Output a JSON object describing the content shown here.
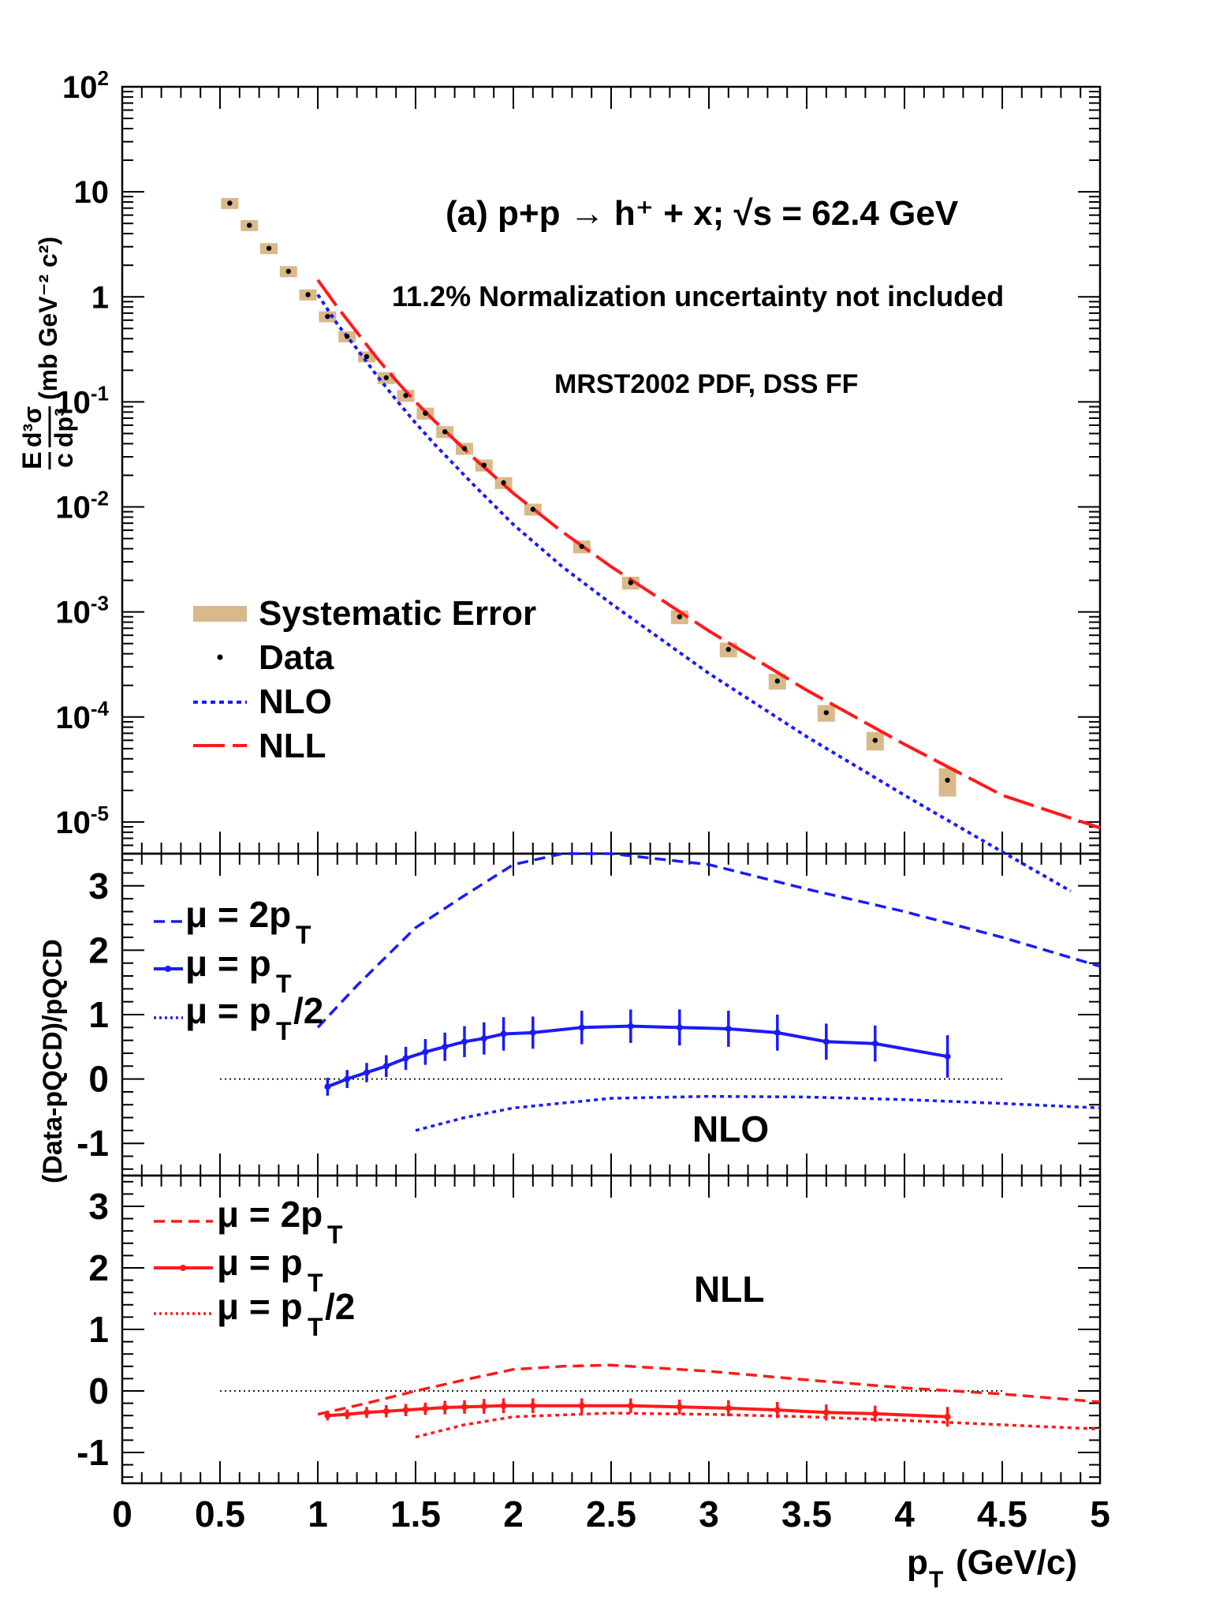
{
  "chart_data": [
    {
      "type": "scatter",
      "panel": "top",
      "title": "(a) p+p → h⁺ + x; √s = 62.4 GeV",
      "annotations": [
        "11.2% Normalization uncertainty not included",
        "MRST2002 PDF, DSS FF"
      ],
      "ylabel_parts": {
        "e": "E",
        "c": "c",
        "d3sigma": "d³σ",
        "dp3": "dp³",
        "units": "(mb GeV⁻² c²)"
      },
      "xlim": [
        0,
        5
      ],
      "ylim": [
        5e-06,
        100
      ],
      "yscale": "log",
      "ytick_labels": [
        {
          "value": 100,
          "base": "10",
          "exp": "2"
        },
        {
          "value": 10,
          "base": "10",
          "exp": ""
        },
        {
          "value": 1,
          "base": "1",
          "exp": ""
        },
        {
          "value": 0.1,
          "base": "10",
          "exp": "-1"
        },
        {
          "value": 0.01,
          "base": "10",
          "exp": "-2"
        },
        {
          "value": 0.001,
          "base": "10",
          "exp": "-3"
        },
        {
          "value": 0.0001,
          "base": "10",
          "exp": "-4"
        },
        {
          "value": 1e-05,
          "base": "10",
          "exp": "-5"
        }
      ],
      "legend": {
        "placement": "lower-left",
        "entries": [
          {
            "label": "Systematic Error",
            "style": "box",
            "color": "#d9b98a"
          },
          {
            "label": "Data",
            "style": "dot",
            "color": "#000000"
          },
          {
            "label": "NLO",
            "style": "dotted",
            "color": "#1a1aff"
          },
          {
            "label": "NLL",
            "style": "dashed",
            "color": "#ff1a1a"
          }
        ]
      },
      "data": {
        "x": [
          0.55,
          0.65,
          0.75,
          0.85,
          0.95,
          1.05,
          1.15,
          1.25,
          1.35,
          1.45,
          1.55,
          1.65,
          1.75,
          1.85,
          1.95,
          2.1,
          2.35,
          2.6,
          2.85,
          3.1,
          3.35,
          3.6,
          3.85,
          4.22
        ],
        "y": [
          7.8,
          4.8,
          2.9,
          1.75,
          1.05,
          0.65,
          0.42,
          0.27,
          0.17,
          0.115,
          0.078,
          0.052,
          0.036,
          0.025,
          0.017,
          0.0095,
          0.0042,
          0.0019,
          0.0009,
          0.00044,
          0.00022,
          0.00011,
          6e-05,
          2.5e-05
        ],
        "syst_rel": [
          0.12,
          0.12,
          0.12,
          0.12,
          0.12,
          0.12,
          0.12,
          0.12,
          0.13,
          0.13,
          0.13,
          0.13,
          0.13,
          0.13,
          0.13,
          0.13,
          0.14,
          0.14,
          0.15,
          0.16,
          0.17,
          0.18,
          0.2,
          0.3
        ],
        "color": "#d9b98a"
      },
      "series": [
        {
          "name": "NLO",
          "x": [
            1.0,
            1.1,
            1.2,
            1.3,
            1.4,
            1.5,
            1.6,
            1.8,
            2.0,
            2.25,
            2.5,
            3.0,
            3.5,
            4.0,
            4.5,
            4.85
          ],
          "y": [
            1.05,
            0.55,
            0.32,
            0.18,
            0.105,
            0.063,
            0.039,
            0.016,
            0.0068,
            0.0027,
            0.0012,
            0.00026,
            6.5e-05,
            1.8e-05,
            5.2e-06,
            2.2e-06
          ],
          "color": "#1a1aff",
          "style": "dotted"
        },
        {
          "name": "NLL",
          "x": [
            1.0,
            1.1,
            1.2,
            1.3,
            1.4,
            1.5,
            1.6,
            1.8,
            2.0,
            2.25,
            2.5,
            3.0,
            3.5,
            4.0,
            4.5,
            5.0
          ],
          "y": [
            1.45,
            0.8,
            0.46,
            0.265,
            0.16,
            0.1,
            0.065,
            0.029,
            0.0135,
            0.0058,
            0.0027,
            0.00066,
            0.00018,
            5.5e-05,
            1.8e-05,
            8.8e-06
          ],
          "color": "#ff1a1a",
          "style": "dashed"
        }
      ]
    },
    {
      "type": "line",
      "panel": "middle",
      "label": "NLO",
      "ylabel": "(Data-pQCD)/pQCD",
      "xlim": [
        0,
        5
      ],
      "ylim": [
        -1.5,
        3.5
      ],
      "yticks": [
        -1,
        0,
        1,
        2,
        3
      ],
      "reference_line": {
        "y": 0,
        "x": [
          0.5,
          4.5
        ]
      },
      "legend": {
        "placement": "top-left",
        "entries": [
          {
            "label": "μ = 2p",
            "sub": "T",
            "suffix": "",
            "style": "dashed",
            "color": "#1a1aff"
          },
          {
            "label": "μ = p",
            "sub": "T",
            "suffix": "",
            "style": "solid-marker",
            "color": "#1a1aff"
          },
          {
            "label": "μ = p",
            "sub": "T",
            "suffix": "/2",
            "style": "dotted",
            "color": "#1a1aff"
          }
        ]
      },
      "series": [
        {
          "name": "μ = 2pT",
          "style": "dashed",
          "color": "#1a1aff",
          "x": [
            1.0,
            1.2,
            1.5,
            1.75,
            2.0,
            2.25,
            2.5,
            3.0,
            3.5,
            4.0,
            4.5,
            5.0
          ],
          "y": [
            0.8,
            1.45,
            2.35,
            2.85,
            3.33,
            3.5,
            3.55,
            3.33,
            2.95,
            2.6,
            2.2,
            1.75
          ]
        },
        {
          "name": "μ = pT",
          "style": "solid",
          "color": "#1a1aff",
          "markers": true,
          "x": [
            1.05,
            1.15,
            1.25,
            1.35,
            1.45,
            1.55,
            1.65,
            1.75,
            1.85,
            1.95,
            2.1,
            2.35,
            2.6,
            2.85,
            3.1,
            3.35,
            3.6,
            3.85,
            4.22
          ],
          "y": [
            -0.12,
            0.0,
            0.1,
            0.2,
            0.32,
            0.42,
            0.5,
            0.58,
            0.63,
            0.7,
            0.72,
            0.8,
            0.82,
            0.8,
            0.78,
            0.72,
            0.58,
            0.55,
            0.35
          ],
          "yerr": [
            0.14,
            0.14,
            0.15,
            0.17,
            0.18,
            0.2,
            0.22,
            0.24,
            0.25,
            0.26,
            0.25,
            0.26,
            0.26,
            0.28,
            0.28,
            0.28,
            0.28,
            0.28,
            0.33
          ]
        },
        {
          "name": "μ = pT/2",
          "style": "dotted",
          "color": "#1a1aff",
          "x": [
            1.5,
            1.75,
            2.0,
            2.5,
            3.0,
            3.5,
            4.0,
            4.5,
            5.0
          ],
          "y": [
            -0.8,
            -0.6,
            -0.45,
            -0.3,
            -0.27,
            -0.28,
            -0.32,
            -0.38,
            -0.45
          ]
        }
      ]
    },
    {
      "type": "line",
      "panel": "bottom",
      "label": "NLL",
      "xlabel_base": "p",
      "xlabel_sub": "T",
      "xlabel_units": "(GeV/c)",
      "xlim": [
        0,
        5
      ],
      "xticks": [
        "0",
        "0.5",
        "1",
        "1.5",
        "2",
        "2.5",
        "3",
        "3.5",
        "4",
        "4.5",
        "5"
      ],
      "ylim": [
        -1.5,
        3.5
      ],
      "yticks": [
        -1,
        0,
        1,
        2,
        3
      ],
      "reference_line": {
        "y": 0,
        "x": [
          0.5,
          4.5
        ]
      },
      "legend": {
        "placement": "top-left",
        "entries": [
          {
            "label": "μ = 2p",
            "sub": "T",
            "suffix": "",
            "style": "dashed",
            "color": "#ff1a1a"
          },
          {
            "label": "μ = p",
            "sub": "T",
            "suffix": "",
            "style": "solid-marker",
            "color": "#ff1a1a"
          },
          {
            "label": "μ = p",
            "sub": "T",
            "suffix": "/2",
            "style": "dotted",
            "color": "#ff1a1a"
          }
        ]
      },
      "series": [
        {
          "name": "μ = 2pT",
          "style": "dashed",
          "color": "#ff1a1a",
          "x": [
            1.0,
            1.25,
            1.5,
            1.75,
            2.0,
            2.25,
            2.5,
            3.0,
            3.5,
            4.0,
            4.5,
            5.0
          ],
          "y": [
            -0.38,
            -0.2,
            0.0,
            0.18,
            0.35,
            0.4,
            0.42,
            0.32,
            0.18,
            0.05,
            -0.05,
            -0.18
          ]
        },
        {
          "name": "μ = pT",
          "style": "solid",
          "color": "#ff1a1a",
          "markers": true,
          "x": [
            1.05,
            1.15,
            1.25,
            1.35,
            1.45,
            1.55,
            1.65,
            1.75,
            1.85,
            1.95,
            2.1,
            2.35,
            2.6,
            2.85,
            3.1,
            3.35,
            3.6,
            3.85,
            4.22
          ],
          "y": [
            -0.4,
            -0.38,
            -0.35,
            -0.33,
            -0.31,
            -0.29,
            -0.27,
            -0.26,
            -0.25,
            -0.24,
            -0.24,
            -0.24,
            -0.24,
            -0.26,
            -0.28,
            -0.31,
            -0.35,
            -0.37,
            -0.42
          ],
          "yerr": [
            0.08,
            0.08,
            0.09,
            0.1,
            0.1,
            0.1,
            0.11,
            0.11,
            0.12,
            0.12,
            0.12,
            0.12,
            0.12,
            0.12,
            0.13,
            0.13,
            0.13,
            0.13,
            0.16
          ]
        },
        {
          "name": "μ = pT/2",
          "style": "dotted",
          "color": "#ff1a1a",
          "x": [
            1.5,
            1.75,
            2.0,
            2.5,
            3.0,
            3.5,
            4.0,
            4.5,
            5.0
          ],
          "y": [
            -0.75,
            -0.55,
            -0.42,
            -0.36,
            -0.38,
            -0.42,
            -0.48,
            -0.55,
            -0.62
          ]
        }
      ]
    }
  ]
}
